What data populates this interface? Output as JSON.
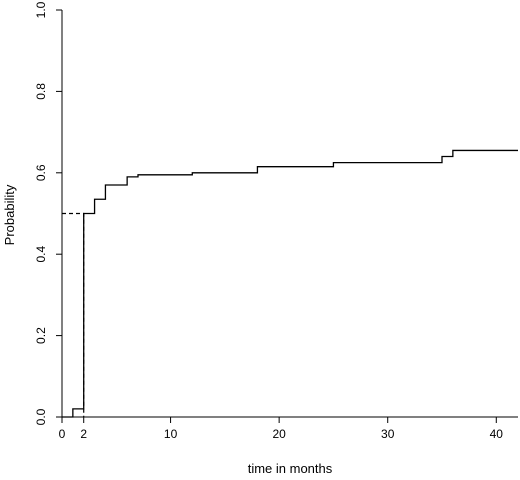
{
  "chart_data": {
    "type": "line",
    "title": "",
    "xlabel": "time in months",
    "ylabel": "Probability",
    "xlim": [
      0,
      42
    ],
    "ylim": [
      0,
      1
    ],
    "x_ticks": [
      0,
      2,
      10,
      20,
      30,
      40
    ],
    "x_tick_labels": [
      "0",
      "2",
      "10",
      "20",
      "30",
      "40"
    ],
    "y_ticks": [
      0,
      0.2,
      0.4,
      0.6,
      0.8,
      1.0
    ],
    "y_tick_labels": [
      "0.0",
      "0.2",
      "0.4",
      "0.6",
      "0.8",
      "1.0"
    ],
    "grid": false,
    "legend": "none",
    "series": [
      {
        "style": "step",
        "x": [
          0,
          1,
          2,
          3,
          4,
          6,
          7,
          12,
          18,
          25,
          35,
          36,
          42
        ],
        "y": [
          0,
          0.02,
          0.5,
          0.535,
          0.57,
          0.59,
          0.595,
          0.6,
          0.615,
          0.625,
          0.64,
          0.655,
          0.655
        ]
      }
    ],
    "reference_lines": [
      {
        "style": "dashed",
        "x": [
          0,
          2,
          2
        ],
        "y": [
          0.5,
          0.5,
          0
        ]
      }
    ]
  }
}
